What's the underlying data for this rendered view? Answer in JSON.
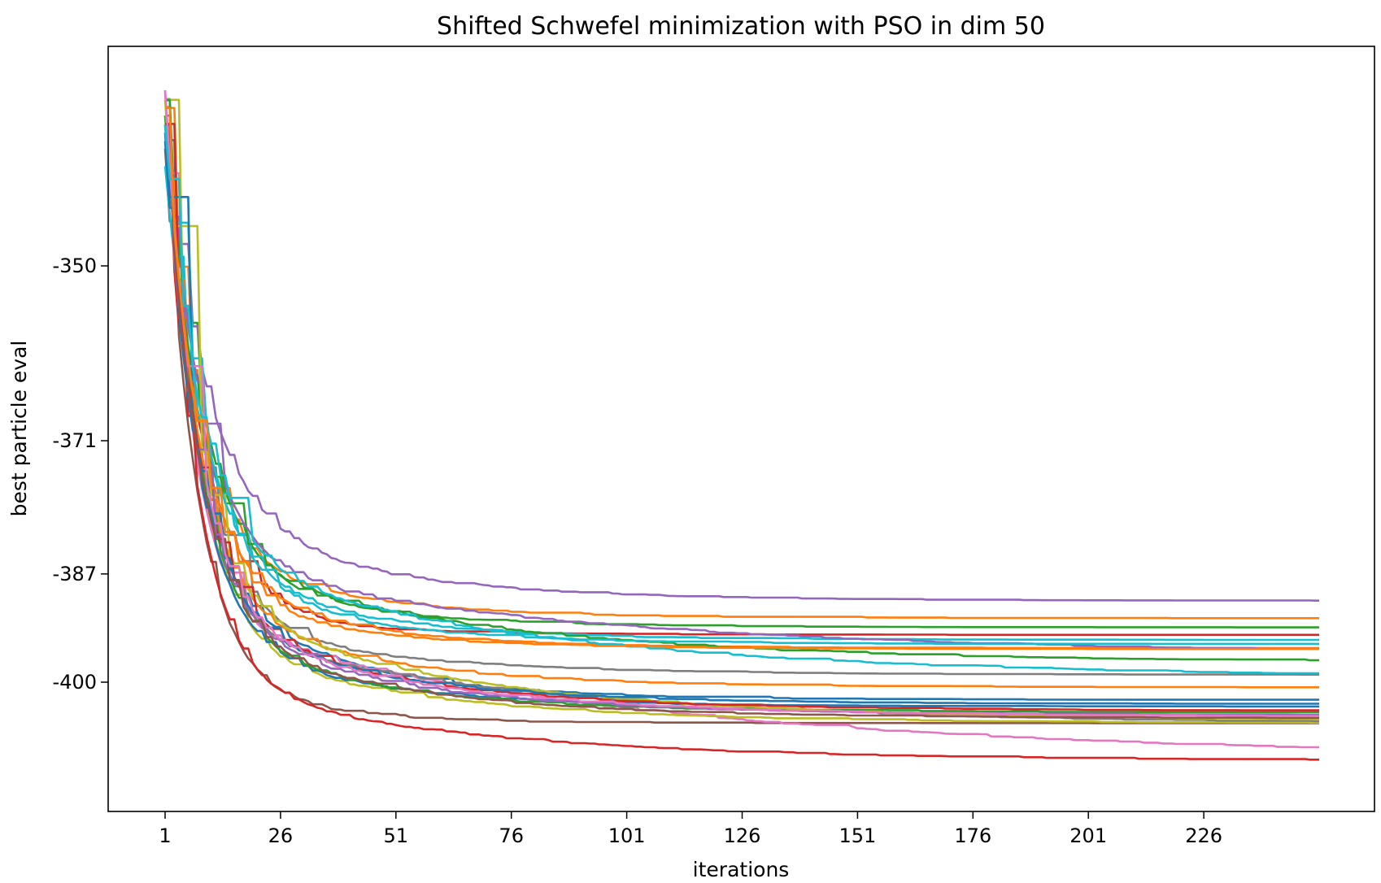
{
  "chart_data": {
    "type": "line",
    "title": "Shifted Schwefel minimization with PSO in dim 50",
    "xlabel": "iterations",
    "ylabel": "best particle eval",
    "x_ticks": [
      1,
      26,
      51,
      76,
      101,
      126,
      151,
      176,
      201,
      226
    ],
    "y_ticks": [
      -350,
      -371,
      -387,
      -400
    ],
    "x_tick_labels": [
      "1",
      "26",
      "51",
      "76",
      "101",
      "126",
      "151",
      "176",
      "201",
      "226"
    ],
    "y_tick_labels": [
      "-350",
      "-371",
      "-387",
      "-400"
    ],
    "x_range": [
      1,
      251
    ],
    "grid": false,
    "legend": "none",
    "series": [
      {
        "color": "#1f77b4",
        "start": -335,
        "fast": -384,
        "final": -402.0,
        "tau_fast": 6,
        "tau_slow": 28
      },
      {
        "color": "#ff7f0e",
        "start": -331,
        "fast": -383,
        "final": -392.2,
        "tau_fast": 7,
        "tau_slow": 30
      },
      {
        "color": "#2ca02c",
        "start": -330,
        "fast": -385,
        "final": -393.3,
        "tau_fast": 8,
        "tau_slow": 30
      },
      {
        "color": "#d62728",
        "start": -334,
        "fast": -390,
        "final": -394.2,
        "tau_fast": 8,
        "tau_slow": 25
      },
      {
        "color": "#9467bd",
        "start": -334,
        "fast": -378,
        "final": -390.1,
        "tau_fast": 9,
        "tau_slow": 35
      },
      {
        "color": "#8c564b",
        "start": -336,
        "fast": -398,
        "final": -404.8,
        "tau_fast": 7,
        "tau_slow": 22
      },
      {
        "color": "#e377c2",
        "start": -329,
        "fast": -392,
        "final": -409.0,
        "tau_fast": 6,
        "tau_slow": 95
      },
      {
        "color": "#7f7f7f",
        "start": -333,
        "fast": -392,
        "final": -399.0,
        "tau_fast": 8,
        "tau_slow": 40
      },
      {
        "color": "#bcbd22",
        "start": -330,
        "fast": -394,
        "final": -404.8,
        "tau_fast": 7,
        "tau_slow": 45
      },
      {
        "color": "#17becf",
        "start": -338,
        "fast": -384,
        "final": -394.8,
        "tau_fast": 8,
        "tau_slow": 30
      },
      {
        "color": "#d62728",
        "start": -334,
        "fast": -399,
        "final": -409.3,
        "tau_fast": 7,
        "tau_slow": 55
      },
      {
        "color": "#1f77b4",
        "start": -335,
        "fast": -392,
        "final": -402.8,
        "tau_fast": 7,
        "tau_slow": 30
      },
      {
        "color": "#ff7f0e",
        "start": -332,
        "fast": -385,
        "final": -395.8,
        "tau_fast": 7,
        "tau_slow": 28
      },
      {
        "color": "#2ca02c",
        "start": -332,
        "fast": -384,
        "final": -397.5,
        "tau_fast": 7,
        "tau_slow": 60
      },
      {
        "color": "#9467bd",
        "start": -332,
        "fast": -385,
        "final": -396.5,
        "tau_fast": 8,
        "tau_slow": 80
      },
      {
        "color": "#7f7f7f",
        "start": -334,
        "fast": -393,
        "final": -405.0,
        "tau_fast": 7,
        "tau_slow": 70
      },
      {
        "color": "#17becf",
        "start": -333,
        "fast": -384,
        "final": -399.3,
        "tau_fast": 8,
        "tau_slow": 70
      },
      {
        "color": "#ff7f0e",
        "start": -331,
        "fast": -389,
        "final": -400.5,
        "tau_fast": 7,
        "tau_slow": 35
      },
      {
        "color": "#2ca02c",
        "start": -330,
        "fast": -392,
        "final": -403.5,
        "tau_fast": 7,
        "tau_slow": 35
      },
      {
        "color": "#bcbd22",
        "start": -330,
        "fast": -389,
        "final": -404.5,
        "tau_fast": 7,
        "tau_slow": 55
      },
      {
        "color": "#d62728",
        "start": -333,
        "fast": -390,
        "final": -403.3,
        "tau_fast": 7,
        "tau_slow": 40
      },
      {
        "color": "#9467bd",
        "start": -334,
        "fast": -391,
        "final": -403.8,
        "tau_fast": 7,
        "tau_slow": 40
      },
      {
        "color": "#1f77b4",
        "start": -334,
        "fast": -390,
        "final": -402.5,
        "tau_fast": 7,
        "tau_slow": 35
      },
      {
        "color": "#8c564b",
        "start": -333,
        "fast": -392,
        "final": -404.2,
        "tau_fast": 7,
        "tau_slow": 40
      },
      {
        "color": "#e377c2",
        "start": -329,
        "fast": -391,
        "final": -404.0,
        "tau_fast": 7,
        "tau_slow": 45
      },
      {
        "color": "#17becf",
        "start": -333,
        "fast": -385,
        "final": -395.3,
        "tau_fast": 8,
        "tau_slow": 30
      },
      {
        "color": "#ff7f0e",
        "start": -331,
        "fast": -388,
        "final": -395.9,
        "tau_fast": 7,
        "tau_slow": 30
      }
    ]
  }
}
